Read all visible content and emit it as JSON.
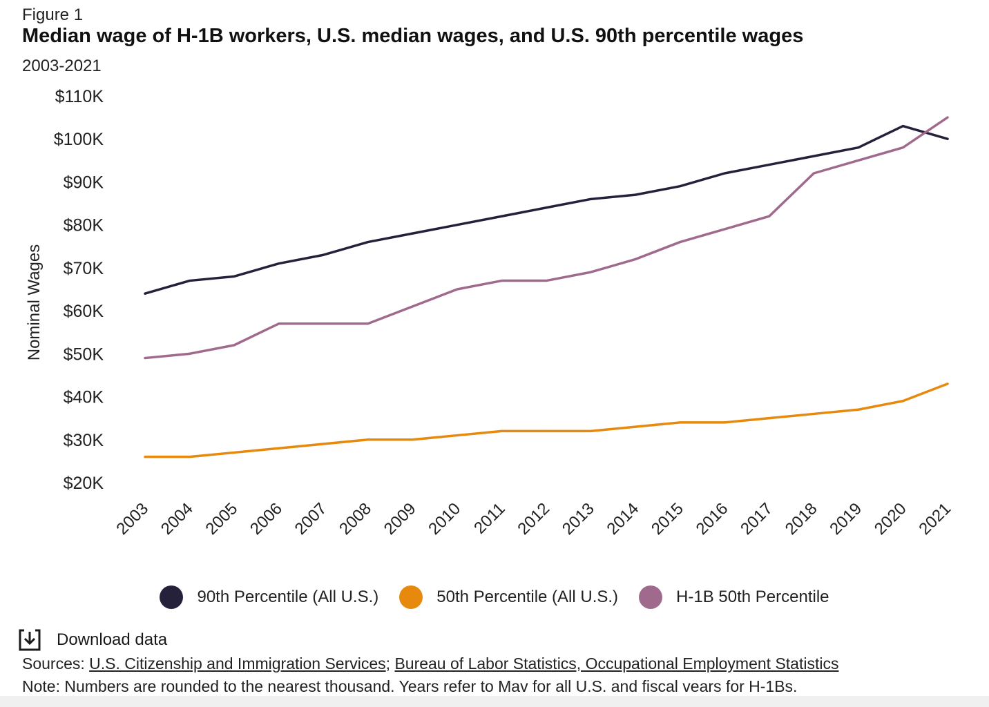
{
  "figure_label": "Figure 1",
  "title": "Median wage of H-1B workers, U.S. median wages, and U.S. 90th percentile wages",
  "subtitle": "2003-2021",
  "download_label": "Download data",
  "download_icon": "download-icon",
  "sources": {
    "prefix": "Sources: ",
    "link1": "U.S. Citizenship and Immigration Services",
    "separator": "; ",
    "link2": "Bureau of Labor Statistics, Occupational Employment Statistics"
  },
  "note": "Note: Numbers are rounded to the nearest thousand. Years refer to Mav for all U.S. and fiscal vears for H-1Bs.",
  "chart_data": {
    "type": "line",
    "title": "Median wage of H-1B workers, U.S. median wages, and U.S. 90th percentile wages",
    "subtitle": "2003-2021",
    "xlabel": "",
    "ylabel": "Nominal Wages",
    "ylim": [
      20000,
      110000
    ],
    "y_ticks": [
      20000,
      30000,
      40000,
      50000,
      60000,
      70000,
      80000,
      90000,
      100000,
      110000
    ],
    "y_tick_labels": [
      "$20K",
      "$30K",
      "$40K",
      "$50K",
      "$60K",
      "$70K",
      "$80K",
      "$90K",
      "$100K",
      "$110K"
    ],
    "categories": [
      "2003",
      "2004",
      "2005",
      "2006",
      "2007",
      "2008",
      "2009",
      "2010",
      "2011",
      "2012",
      "2013",
      "2014",
      "2015",
      "2016",
      "2017",
      "2018",
      "2019",
      "2020",
      "2021"
    ],
    "grid": false,
    "legend_position": "bottom",
    "series": [
      {
        "name": "90th Percentile (All U.S.)",
        "color": "#25213b",
        "values": [
          64000,
          67000,
          68000,
          71000,
          73000,
          76000,
          78000,
          80000,
          82000,
          84000,
          86000,
          87000,
          89000,
          92000,
          94000,
          96000,
          98000,
          103000,
          100000
        ]
      },
      {
        "name": "50th Percentile (All U.S.)",
        "color": "#e6890c",
        "values": [
          26000,
          26000,
          27000,
          28000,
          29000,
          30000,
          30000,
          31000,
          32000,
          32000,
          32000,
          33000,
          34000,
          34000,
          35000,
          36000,
          37000,
          39000,
          43000
        ]
      },
      {
        "name": "H-1B 50th Percentile",
        "color": "#a06a8d",
        "values": [
          49000,
          50000,
          52000,
          57000,
          57000,
          57000,
          61000,
          65000,
          67000,
          67000,
          69000,
          72000,
          76000,
          79000,
          82000,
          92000,
          95000,
          98000,
          105000
        ]
      }
    ]
  }
}
